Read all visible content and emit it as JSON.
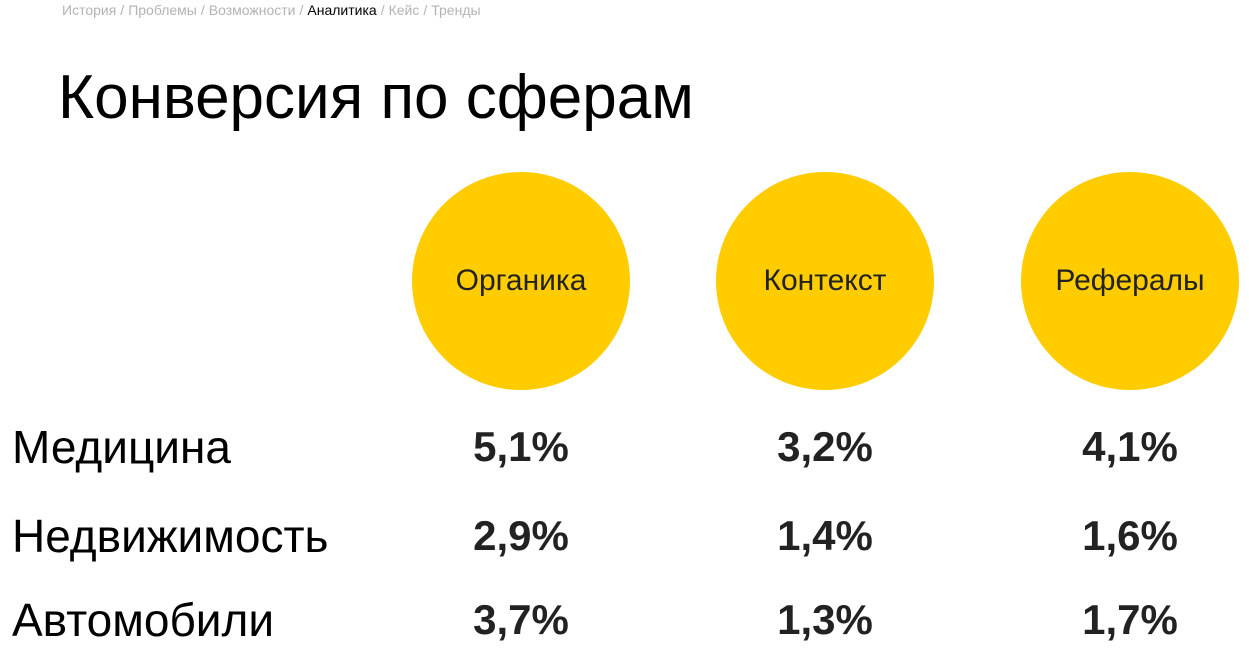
{
  "breadcrumb": {
    "items": [
      "История",
      "Проблемы",
      "Возможности",
      "Аналитика",
      "Кейс",
      "Тренды"
    ],
    "separator": "/",
    "active": 3
  },
  "title": "Конверсия по сферам",
  "table": {
    "columns": [
      "Органика",
      "Контекст",
      "Рефералы"
    ],
    "rows": [
      {
        "label": "Медицина",
        "cells": [
          "5,1%",
          "3,2%",
          "4,1%"
        ]
      },
      {
        "label": "Недвижимость",
        "cells": [
          "2,9%",
          "1,4%",
          "1,6%"
        ]
      },
      {
        "label": "Автомобили",
        "cells": [
          "3,7%",
          "1,3%",
          "1,7%"
        ]
      }
    ]
  }
}
